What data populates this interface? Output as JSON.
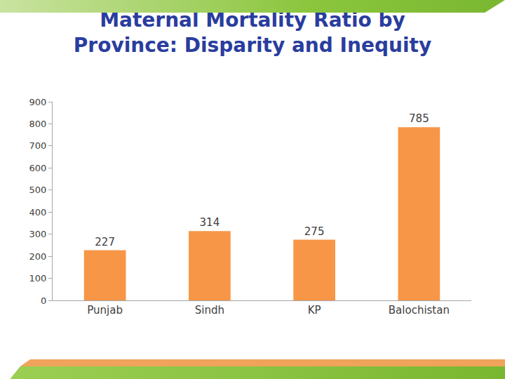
{
  "chart_data": {
    "type": "bar",
    "title": "Maternal Mortality Ratio by\nProvince: Disparity and Inequity",
    "categories": [
      "Punjab",
      "Sindh",
      "KP",
      "Balochistan"
    ],
    "values": [
      227,
      314,
      275,
      785
    ],
    "color": "#f79646",
    "ylim": [
      0,
      900
    ],
    "yticks": [
      0,
      100,
      200,
      300,
      400,
      500,
      600,
      700,
      800,
      900
    ],
    "grid": false,
    "data_labels": true
  }
}
